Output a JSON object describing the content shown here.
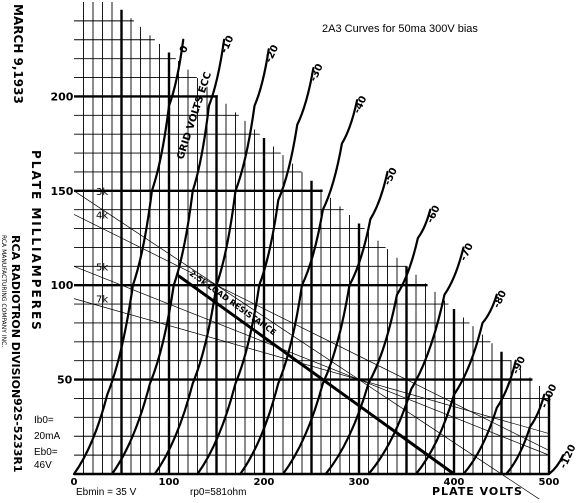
{
  "chart_data": {
    "type": "line",
    "title": "2A3 Curves for 50ma 300V bias",
    "xlabel": "PLATE VOLTS",
    "ylabel": "PLATE MILLIAMPERES",
    "xlim": [
      0,
      500
    ],
    "ylim": [
      0,
      250
    ],
    "x_ticks": [
      "0",
      "100",
      "200",
      "300",
      "400",
      "500"
    ],
    "y_ticks": [
      "50",
      "100",
      "150",
      "200"
    ],
    "grid": true,
    "datasheet_text": {
      "date": "MARCH 9,1933",
      "brand_line1": "RCA RADIOTRON DIVISION",
      "brand_line2": "RCA MANUFACTURING COMPANY INC.",
      "drawing_no": "92S-5233R1",
      "tube_label": "GRID VOLTS ECC"
    },
    "series": [
      {
        "name": "0",
        "points": [
          [
            0,
            0
          ],
          [
            35,
            42
          ],
          [
            62,
            100
          ],
          [
            82,
            150
          ],
          [
            100,
            195
          ],
          [
            115,
            230
          ]
        ]
      },
      {
        "name": "-10",
        "points": [
          [
            40,
            0
          ],
          [
            80,
            48
          ],
          [
            105,
            100
          ],
          [
            125,
            150
          ],
          [
            142,
            195
          ],
          [
            158,
            230
          ]
        ]
      },
      {
        "name": "-20",
        "points": [
          [
            85,
            0
          ],
          [
            125,
            48
          ],
          [
            150,
            100
          ],
          [
            170,
            150
          ],
          [
            190,
            195
          ],
          [
            205,
            225
          ]
        ]
      },
      {
        "name": "-30",
        "points": [
          [
            130,
            0
          ],
          [
            170,
            48
          ],
          [
            195,
            100
          ],
          [
            215,
            145
          ],
          [
            235,
            185
          ],
          [
            252,
            215
          ]
        ]
      },
      {
        "name": "-40",
        "points": [
          [
            175,
            0
          ],
          [
            215,
            48
          ],
          [
            240,
            100
          ],
          [
            262,
            140
          ],
          [
            282,
            175
          ],
          [
            298,
            198
          ]
        ]
      },
      {
        "name": "-50",
        "points": [
          [
            220,
            0
          ],
          [
            262,
            48
          ],
          [
            290,
            100
          ],
          [
            312,
            135
          ],
          [
            330,
            160
          ]
        ]
      },
      {
        "name": "-60",
        "points": [
          [
            265,
            0
          ],
          [
            310,
            48
          ],
          [
            340,
            95
          ],
          [
            362,
            125
          ],
          [
            375,
            140
          ]
        ]
      },
      {
        "name": "-70",
        "points": [
          [
            310,
            0
          ],
          [
            355,
            45
          ],
          [
            390,
            95
          ],
          [
            410,
            120
          ]
        ]
      },
      {
        "name": "-80",
        "points": [
          [
            360,
            0
          ],
          [
            400,
            42
          ],
          [
            430,
            80
          ],
          [
            445,
            95
          ]
        ]
      },
      {
        "name": "-90",
        "points": [
          [
            410,
            0
          ],
          [
            445,
            35
          ],
          [
            465,
            60
          ]
        ]
      },
      {
        "name": "-100",
        "points": [
          [
            455,
            0
          ],
          [
            480,
            25
          ],
          [
            495,
            42
          ]
        ]
      },
      {
        "name": "-120",
        "points": [
          [
            500,
            0
          ],
          [
            515,
            10
          ]
        ]
      }
    ],
    "load_lines": [
      {
        "label": "3k",
        "points": [
          [
            0,
            150
          ],
          [
            500,
            -16.7
          ]
        ]
      },
      {
        "label": "4k",
        "points": [
          [
            0,
            137.5
          ],
          [
            500,
            12.5
          ]
        ]
      },
      {
        "label": "5k",
        "points": [
          [
            0,
            110
          ],
          [
            500,
            10
          ]
        ]
      },
      {
        "label": "7k",
        "points": [
          [
            0,
            92.9
          ],
          [
            500,
            21.4
          ]
        ]
      }
    ],
    "main_load_line": {
      "label": "2.5k LOAD RESISTANCE",
      "points": [
        [
          110,
          105
        ],
        [
          400,
          0
        ]
      ]
    },
    "annotations": {
      "ib0": "Ib0=",
      "ib0_val": "20mA",
      "eb0": "Eb0=",
      "eb0_val": "46V",
      "ebmin": "Ebmin = 35 V",
      "rp0": "rp0=581ohm"
    }
  }
}
